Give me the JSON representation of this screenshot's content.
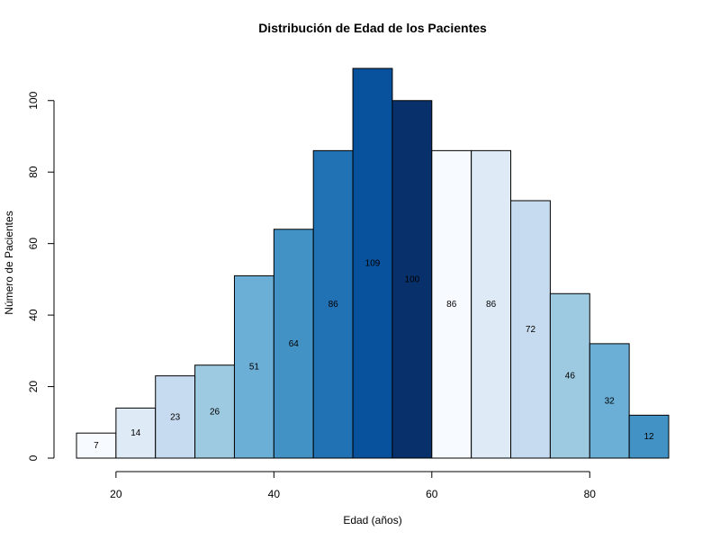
{
  "chart_data": {
    "type": "bar",
    "title": "Distribución de Edad de los Pacientes",
    "xlabel": "Edad (años)",
    "ylabel": "Número de Pacientes",
    "bins": [
      {
        "start": 15,
        "end": 20,
        "value": 7,
        "color": "#f7fbff"
      },
      {
        "start": 20,
        "end": 25,
        "value": 14,
        "color": "#deebf7"
      },
      {
        "start": 25,
        "end": 30,
        "value": 23,
        "color": "#c6dbef"
      },
      {
        "start": 30,
        "end": 35,
        "value": 26,
        "color": "#9ecae1"
      },
      {
        "start": 35,
        "end": 40,
        "value": 51,
        "color": "#6baed6"
      },
      {
        "start": 40,
        "end": 45,
        "value": 64,
        "color": "#4292c6"
      },
      {
        "start": 45,
        "end": 50,
        "value": 86,
        "color": "#2171b5"
      },
      {
        "start": 50,
        "end": 55,
        "value": 109,
        "color": "#08519c"
      },
      {
        "start": 55,
        "end": 60,
        "value": 100,
        "color": "#08306b"
      },
      {
        "start": 60,
        "end": 65,
        "value": 86,
        "color": "#f7fbff"
      },
      {
        "start": 65,
        "end": 70,
        "value": 86,
        "color": "#deebf7"
      },
      {
        "start": 70,
        "end": 75,
        "value": 72,
        "color": "#c6dbef"
      },
      {
        "start": 75,
        "end": 80,
        "value": 46,
        "color": "#9ecae1"
      },
      {
        "start": 80,
        "end": 85,
        "value": 32,
        "color": "#6baed6"
      },
      {
        "start": 85,
        "end": 90,
        "value": 12,
        "color": "#4292c6"
      }
    ],
    "xlim": [
      15,
      90
    ],
    "ylim": [
      0,
      109
    ],
    "x_ticks": [
      20,
      40,
      60,
      80
    ],
    "y_ticks": [
      0,
      20,
      40,
      60,
      80,
      100
    ],
    "grid": false,
    "legend": "none"
  }
}
